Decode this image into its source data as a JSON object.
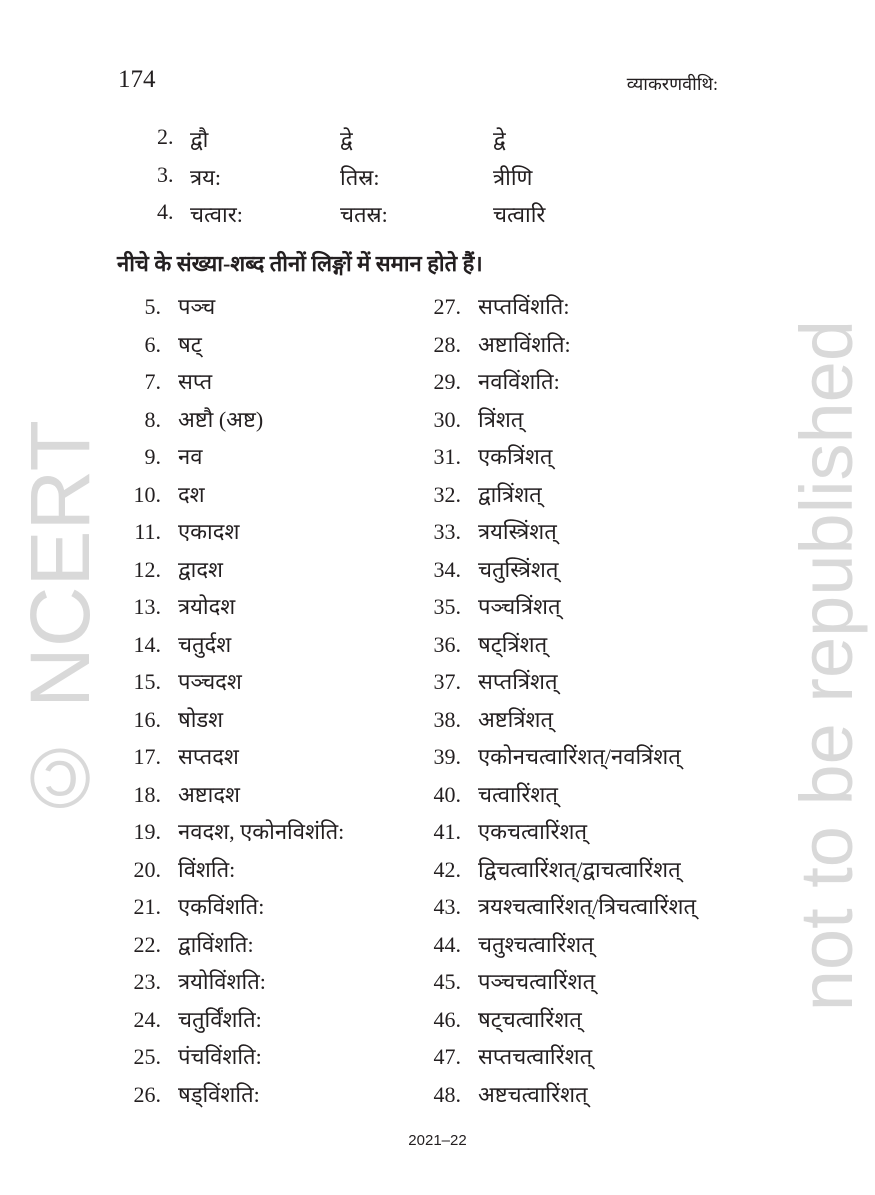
{
  "header": {
    "page_number": "174",
    "running_head": "व्याकरणवीथि:"
  },
  "top_table": [
    {
      "num": "2.",
      "masc": "द्वौ",
      "fem": "द्वे",
      "neut": "द्वे"
    },
    {
      "num": "3.",
      "masc": "त्रय:",
      "fem": "तिस्र:",
      "neut": "त्रीणि"
    },
    {
      "num": "4.",
      "masc": "चत्वार:",
      "fem": "चतस्र:",
      "neut": "चत्वारि"
    }
  ],
  "heading": "नीचे के संख्या-शब्द तीनों लिङ्गों में समान होते हैं।",
  "list_left": [
    {
      "num": "5.",
      "word": "पञ्च"
    },
    {
      "num": "6.",
      "word": "षट्"
    },
    {
      "num": "7.",
      "word": "सप्त"
    },
    {
      "num": "8.",
      "word": "अष्टौ (अष्ट)"
    },
    {
      "num": "9.",
      "word": "नव"
    },
    {
      "num": "10.",
      "word": "दश"
    },
    {
      "num": "11.",
      "word": "एकादश"
    },
    {
      "num": "12.",
      "word": "द्वादश"
    },
    {
      "num": "13.",
      "word": "त्रयोदश"
    },
    {
      "num": "14.",
      "word": "चतुर्दश"
    },
    {
      "num": "15.",
      "word": "पञ्चदश"
    },
    {
      "num": "16.",
      "word": "षोडश"
    },
    {
      "num": "17.",
      "word": "सप्तदश"
    },
    {
      "num": "18.",
      "word": "अष्टादश"
    },
    {
      "num": "19.",
      "word": "नवदश, एकोनविशंति:"
    },
    {
      "num": "20.",
      "word": "विंशति:"
    },
    {
      "num": "21.",
      "word": "एकविंशति:"
    },
    {
      "num": "22.",
      "word": "द्वाविंशति:"
    },
    {
      "num": "23.",
      "word": "त्रयोविंशति:"
    },
    {
      "num": "24.",
      "word": "चतुर्विंशति:"
    },
    {
      "num": "25.",
      "word": "पंचविंशति:"
    },
    {
      "num": "26.",
      "word": "षड्विंशति:"
    }
  ],
  "list_right": [
    {
      "num": "27.",
      "word": "सप्तविंशति:"
    },
    {
      "num": "28.",
      "word": "अष्टाविंशति:"
    },
    {
      "num": "29.",
      "word": "नवविंशति:"
    },
    {
      "num": "30.",
      "word": "त्रिंशत्"
    },
    {
      "num": "31.",
      "word": "एकत्रिंशत्"
    },
    {
      "num": "32.",
      "word": "द्वात्रिंशत्"
    },
    {
      "num": "33.",
      "word": "त्रयस्त्रिंशत्"
    },
    {
      "num": "34.",
      "word": "चतुस्त्रिंशत्"
    },
    {
      "num": "35.",
      "word": "पञ्चत्रिंशत्"
    },
    {
      "num": "36.",
      "word": "षट्त्रिंशत्"
    },
    {
      "num": "37.",
      "word": "सप्तत्रिंशत्"
    },
    {
      "num": "38.",
      "word": "अष्टत्रिंशत्"
    },
    {
      "num": "39.",
      "word": "एकोनचत्वारिंशत्/नवत्रिंशत्"
    },
    {
      "num": "40.",
      "word": "चत्वारिंशत्"
    },
    {
      "num": "41.",
      "word": "एकचत्वारिंशत्"
    },
    {
      "num": "42.",
      "word": "द्विचत्वारिंशत्/द्वाचत्वारिंशत्"
    },
    {
      "num": "43.",
      "word": "त्रयश्चत्वारिंशत्/त्रिचत्वारिंशत्"
    },
    {
      "num": "44.",
      "word": "चतुश्चत्वारिंशत्"
    },
    {
      "num": "45.",
      "word": "पञ्चचत्वारिंशत्"
    },
    {
      "num": "46.",
      "word": "षट्चत्वारिंशत्"
    },
    {
      "num": "47.",
      "word": "सप्तचत्वारिंशत्"
    },
    {
      "num": "48.",
      "word": "अष्टचत्वारिंशत्"
    }
  ],
  "footer": "2021–22",
  "watermark": {
    "line1": "© NCERT",
    "line2": "not to be republished",
    "color": "#d9d9d9"
  }
}
